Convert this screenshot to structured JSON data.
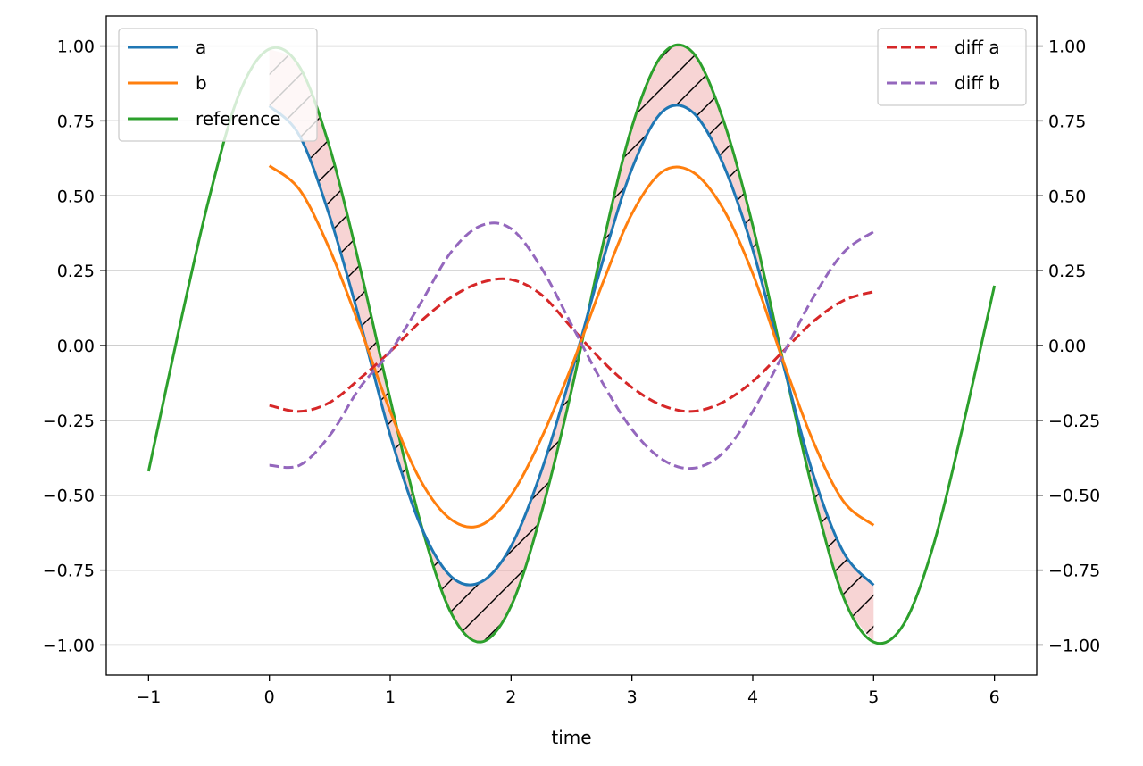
{
  "chart_data": {
    "type": "line",
    "title": "",
    "xlabel": "time",
    "ylabel": "",
    "xlim": [
      -1.35,
      6.35
    ],
    "ylim": [
      -1.1,
      1.1
    ],
    "y2lim": [
      -1.1,
      1.1
    ],
    "grid": "horizontal",
    "x_ticks": [
      -1,
      0,
      1,
      2,
      3,
      4,
      5,
      6
    ],
    "x_tick_labels": [
      "−1",
      "0",
      "1",
      "2",
      "3",
      "4",
      "5",
      "6"
    ],
    "y_ticks": [
      -1.0,
      -0.75,
      -0.5,
      -0.25,
      0.0,
      0.25,
      0.5,
      0.75,
      1.0
    ],
    "y_tick_labels": [
      "−1.00",
      "−0.75",
      "−0.50",
      "−0.25",
      "0.00",
      "0.25",
      "0.50",
      "0.75",
      "1.00"
    ],
    "y2_tick_labels": [
      "−1.00",
      "−0.75",
      "−0.50",
      "−0.25",
      "0.00",
      "0.25",
      "0.50",
      "0.75",
      "1.00"
    ],
    "fill_between": {
      "between": [
        "reference",
        "a"
      ],
      "x_range": [
        0,
        5
      ],
      "color": "#d62728",
      "alpha": 0.2,
      "hatch": "/"
    },
    "legend_left": {
      "placement": "upper left",
      "entries": [
        "a",
        "b",
        "reference"
      ]
    },
    "legend_right": {
      "placement": "upper right",
      "entries": [
        "diff a",
        "diff b"
      ]
    },
    "series": [
      {
        "name": "a",
        "axis": "left",
        "color": "#1f77b4",
        "style": "solid",
        "x": [
          0,
          0.25,
          0.5,
          0.75,
          1.0,
          1.25,
          1.5,
          1.75,
          2.0,
          2.25,
          2.5,
          2.75,
          3.0,
          3.25,
          3.5,
          3.75,
          4.0,
          4.25,
          4.5,
          4.75,
          5.0
        ],
        "y": [
          0.8,
          0.7,
          0.43,
          0.08,
          -0.3,
          -0.6,
          -0.77,
          -0.79,
          -0.67,
          -0.42,
          -0.09,
          0.27,
          0.59,
          0.78,
          0.78,
          0.61,
          0.32,
          -0.06,
          -0.43,
          -0.69,
          -0.8
        ]
      },
      {
        "name": "b",
        "axis": "left",
        "color": "#ff7f0e",
        "style": "solid",
        "x": [
          0,
          0.25,
          0.5,
          0.75,
          1.0,
          1.25,
          1.5,
          1.75,
          2.0,
          2.25,
          2.5,
          2.75,
          3.0,
          3.25,
          3.5,
          3.75,
          4.0,
          4.25,
          4.5,
          4.75,
          5.0
        ],
        "y": [
          0.6,
          0.52,
          0.32,
          0.06,
          -0.22,
          -0.45,
          -0.58,
          -0.6,
          -0.5,
          -0.31,
          -0.07,
          0.2,
          0.44,
          0.58,
          0.58,
          0.46,
          0.24,
          -0.05,
          -0.32,
          -0.52,
          -0.6
        ]
      },
      {
        "name": "reference",
        "axis": "left",
        "color": "#2ca02c",
        "style": "solid",
        "x": [
          -1.0,
          -0.75,
          -0.5,
          -0.25,
          0,
          0.25,
          0.5,
          0.75,
          1.0,
          1.25,
          1.5,
          1.75,
          2.0,
          2.25,
          2.5,
          2.75,
          3.0,
          3.25,
          3.5,
          3.75,
          4.0,
          4.25,
          4.5,
          4.75,
          5.0,
          5.25,
          5.5,
          5.75,
          6.0
        ],
        "y": [
          -0.42,
          0.05,
          0.49,
          0.84,
          0.99,
          0.93,
          0.66,
          0.26,
          -0.18,
          -0.59,
          -0.89,
          -0.99,
          -0.87,
          -0.56,
          -0.15,
          0.32,
          0.73,
          0.97,
          0.98,
          0.76,
          0.4,
          -0.05,
          -0.49,
          -0.84,
          -0.99,
          -0.93,
          -0.66,
          -0.25,
          0.2
        ]
      },
      {
        "name": "diff a",
        "axis": "right",
        "color": "#d62728",
        "style": "dashed",
        "x": [
          0,
          0.25,
          0.5,
          0.75,
          1.0,
          1.25,
          1.5,
          1.75,
          2.0,
          2.25,
          2.5,
          2.75,
          3.0,
          3.25,
          3.5,
          3.75,
          4.0,
          4.25,
          4.5,
          4.75,
          5.0
        ],
        "y": [
          -0.2,
          -0.22,
          -0.19,
          -0.11,
          -0.02,
          0.08,
          0.16,
          0.21,
          0.22,
          0.17,
          0.06,
          -0.05,
          -0.14,
          -0.2,
          -0.22,
          -0.19,
          -0.12,
          -0.02,
          0.08,
          0.15,
          0.18
        ]
      },
      {
        "name": "diff b",
        "axis": "right",
        "color": "#9467bd",
        "style": "dashed",
        "x": [
          0,
          0.25,
          0.5,
          0.75,
          1.0,
          1.25,
          1.5,
          1.75,
          2.0,
          2.25,
          2.5,
          2.75,
          3.0,
          3.25,
          3.5,
          3.75,
          4.0,
          4.25,
          4.5,
          4.75,
          5.0
        ],
        "y": [
          -0.4,
          -0.4,
          -0.3,
          -0.14,
          -0.02,
          0.14,
          0.31,
          0.4,
          0.39,
          0.26,
          0.07,
          -0.12,
          -0.28,
          -0.38,
          -0.41,
          -0.36,
          -0.22,
          -0.03,
          0.16,
          0.31,
          0.38
        ]
      }
    ]
  }
}
